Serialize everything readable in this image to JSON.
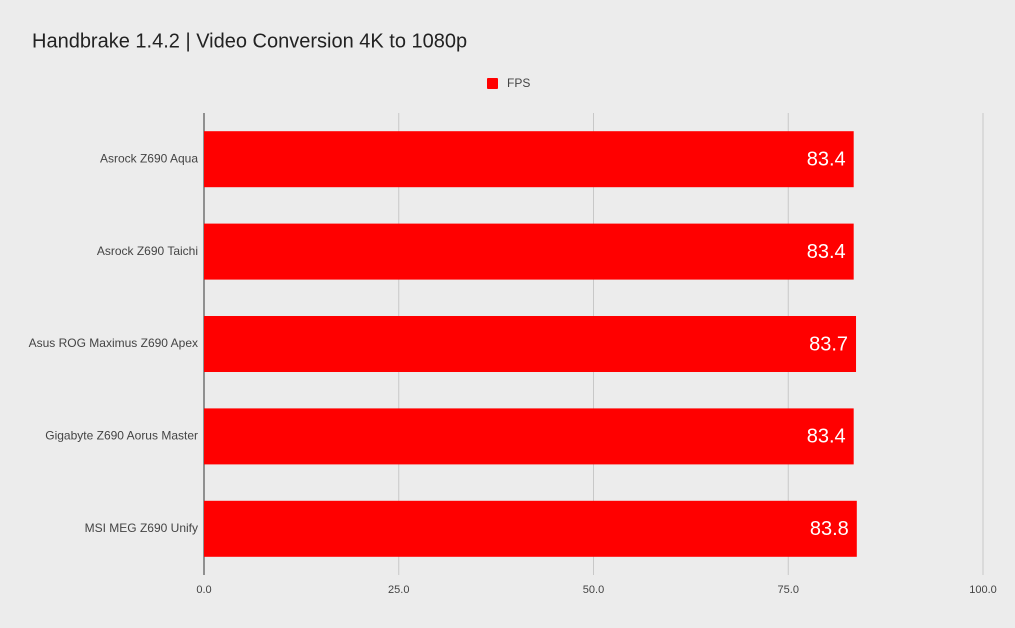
{
  "chart_data": {
    "type": "bar",
    "orientation": "horizontal",
    "title": "Handbrake 1.4.2 | Video Conversion 4K to 1080p",
    "categories": [
      "Asrock Z690 Aqua",
      "Asrock Z690 Taichi",
      "Asus ROG Maximus Z690 Apex",
      "Gigabyte Z690 Aorus Master",
      "MSI MEG Z690 Unify"
    ],
    "series": [
      {
        "name": "FPS",
        "color": "#ff0000",
        "values": [
          83.4,
          83.4,
          83.7,
          83.4,
          83.8
        ]
      }
    ],
    "xlim": [
      0,
      100
    ],
    "xticks": [
      {
        "value": 0,
        "label": "0.0"
      },
      {
        "value": 25,
        "label": "25.0"
      },
      {
        "value": 50,
        "label": "50.0"
      },
      {
        "value": 75,
        "label": "75.0"
      },
      {
        "value": 100,
        "label": "100.0"
      }
    ],
    "grid": true,
    "legend": "top"
  }
}
